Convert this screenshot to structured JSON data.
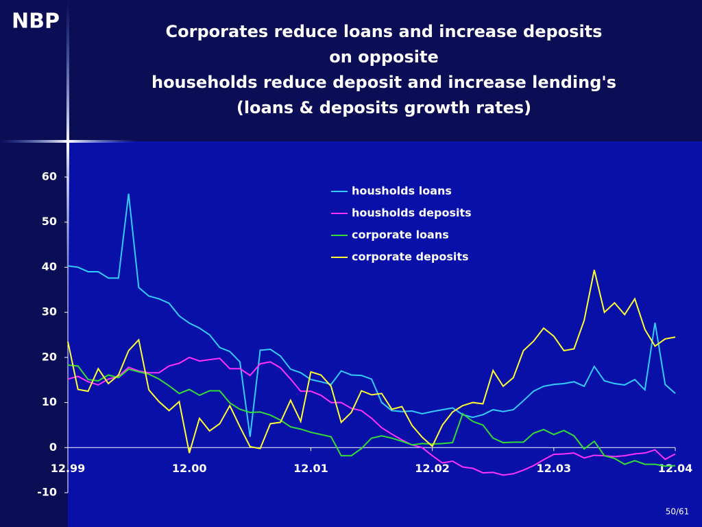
{
  "slide": {
    "logo": "NBP",
    "page_number": "50/61"
  },
  "chart_data": {
    "type": "line",
    "title": [
      "Corporates reduce loans and increase deposits",
      "on opposite",
      "households reduce deposit and increase lending's",
      "(loans & deposits growth rates)"
    ],
    "categories": [
      "12.99",
      null,
      null,
      null,
      null,
      null,
      null,
      null,
      null,
      null,
      null,
      null,
      "12.00",
      null,
      null,
      null,
      null,
      null,
      null,
      null,
      null,
      null,
      null,
      null,
      "12.01",
      null,
      null,
      null,
      null,
      null,
      null,
      null,
      null,
      null,
      null,
      null,
      "12.02",
      null,
      null,
      null,
      null,
      null,
      null,
      null,
      null,
      null,
      null,
      null,
      "12.03",
      null,
      null,
      null,
      null,
      null,
      null,
      null,
      null,
      null,
      null,
      null,
      "12.04"
    ],
    "ylim": [
      -10,
      60
    ],
    "yticks": [
      -10,
      0,
      10,
      20,
      30,
      40,
      50,
      60
    ],
    "grid": false,
    "legend": "top-center",
    "series": [
      {
        "name": "housholds loans",
        "color": "#33ccff",
        "values": [
          40.3,
          40,
          39,
          39,
          37.6,
          37.6,
          56.3,
          35.5,
          33.6,
          33,
          32,
          29.2,
          27.6,
          26.5,
          25,
          22.2,
          21.3,
          19,
          2.4,
          21.6,
          21.8,
          20.3,
          17.4,
          16.6,
          15.1,
          14.6,
          14,
          17,
          16.1,
          16,
          15.2,
          10,
          8.2,
          8,
          8.1,
          7.5,
          8,
          8.4,
          8.8,
          7.3,
          6.7,
          7.3,
          8.4,
          8,
          8.4,
          10.4,
          12.5,
          13.6,
          14,
          14.2,
          14.6,
          13.6,
          18,
          14.8,
          14.2,
          13.9,
          15.1,
          12.8,
          27.7,
          14,
          12
        ]
      },
      {
        "name": "housholds deposits",
        "color": "#ff33ff",
        "values": [
          15.2,
          15.8,
          14.6,
          13.9,
          15.2,
          15.8,
          17.8,
          17,
          16.6,
          16.6,
          18.1,
          18.7,
          20,
          19.2,
          19.5,
          19.8,
          17.5,
          17.5,
          16,
          18.6,
          19,
          17.7,
          15.2,
          12.5,
          12.5,
          11.6,
          10,
          10,
          8.7,
          8.2,
          6.5,
          4.4,
          3,
          1.7,
          0.6,
          0,
          -1.8,
          -3.4,
          -3,
          -4.3,
          -4.6,
          -5.6,
          -5.5,
          -6.1,
          -5.8,
          -5,
          -4,
          -2.7,
          -1.5,
          -1.4,
          -1.2,
          -2.3,
          -1.7,
          -1.8,
          -2,
          -1.8,
          -1.4,
          -1.2,
          -0.5,
          -2.6,
          -1.4
        ]
      },
      {
        "name": "corporate loans",
        "color": "#33dd33",
        "values": [
          18.3,
          18.1,
          15.1,
          14.8,
          16.1,
          15.5,
          17.4,
          16.8,
          16.3,
          15.2,
          13.7,
          12,
          12.9,
          11.6,
          12.6,
          12.6,
          9.9,
          8.5,
          7.8,
          7.9,
          7.2,
          6.1,
          4.6,
          4.1,
          3.4,
          2.9,
          2.4,
          -1.8,
          -1.8,
          -0.2,
          2.1,
          2.6,
          2.1,
          1.4,
          0.6,
          0.9,
          0.8,
          0.9,
          1.1,
          7.5,
          5.8,
          5,
          2.1,
          1.1,
          1.2,
          1.2,
          3.2,
          4,
          2.9,
          3.8,
          2.6,
          -0.3,
          1.4,
          -1.8,
          -2.4,
          -3.7,
          -2.9,
          -3.7,
          -3.7,
          -4.1,
          -4
        ]
      },
      {
        "name": "corporate deposits",
        "color": "#ffff33",
        "values": [
          23.5,
          12.9,
          12.5,
          17.5,
          14.2,
          16.1,
          21.5,
          23.9,
          12.8,
          10.2,
          8.2,
          10.2,
          -1.2,
          6.5,
          3.7,
          5.3,
          9.3,
          4.6,
          0.2,
          -0.2,
          5.3,
          5.6,
          10.5,
          5.8,
          16.8,
          16.1,
          13.6,
          5.6,
          7.8,
          12.6,
          11.7,
          12,
          8.5,
          9.1,
          4.9,
          2.3,
          0.3,
          5,
          7.9,
          9.3,
          10,
          9.7,
          17.1,
          13.6,
          15.5,
          21.5,
          23.6,
          26.5,
          24.7,
          21.5,
          21.9,
          28.2,
          39.4,
          30,
          32.1,
          29.5,
          33,
          26.2,
          22.5,
          24.1,
          24.5
        ]
      }
    ]
  }
}
